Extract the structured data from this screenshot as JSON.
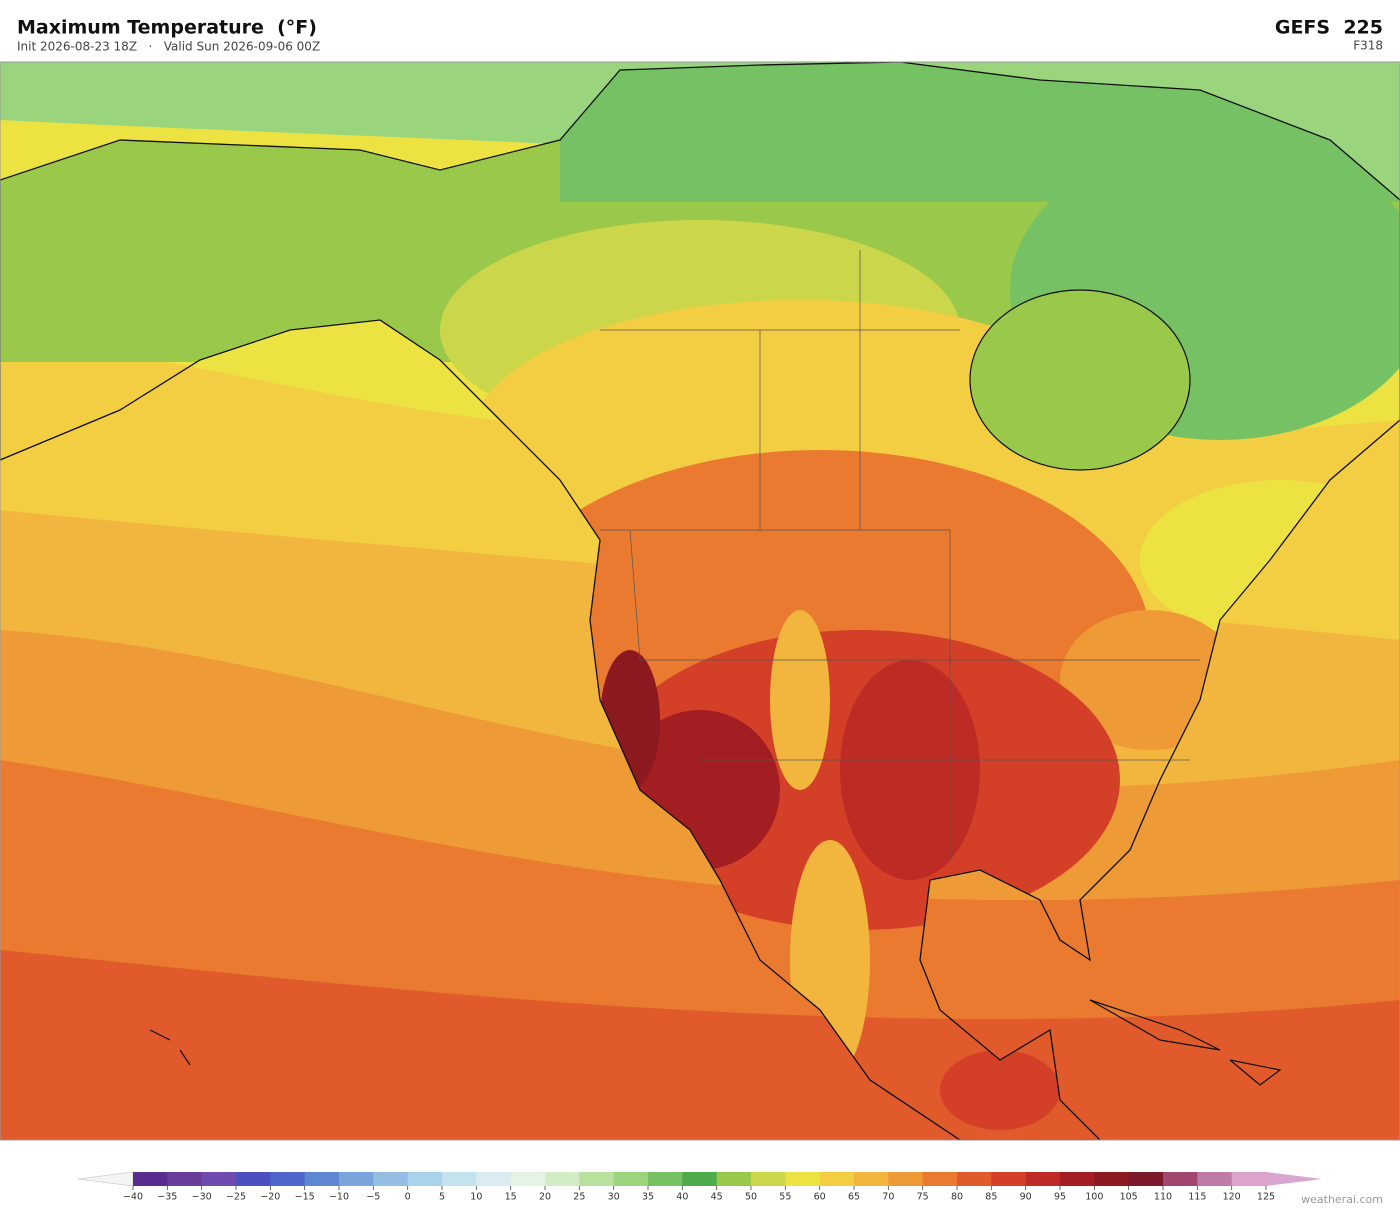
{
  "header": {
    "title": "Maximum Temperature  (°F)",
    "subtitle": "Init 2026-08-23 18Z   ·   Valid Sun 2026-09-06 00Z",
    "model": "GEFS  225",
    "forecast_hour": "F318"
  },
  "colorbar": {
    "ticks": [
      {
        "value": -40,
        "label": "−40"
      },
      {
        "value": -35,
        "label": "−35"
      },
      {
        "value": -30,
        "label": "−30"
      },
      {
        "value": -25,
        "label": "−25"
      },
      {
        "value": -20,
        "label": "−20"
      },
      {
        "value": -15,
        "label": "−15"
      },
      {
        "value": -10,
        "label": "−10"
      },
      {
        "value": -5,
        "label": "−5"
      },
      0,
      5,
      10,
      15,
      20,
      25,
      30,
      35,
      40,
      45,
      50,
      55,
      60,
      65,
      70,
      75,
      80,
      85,
      90,
      95,
      100,
      105,
      110,
      115,
      120,
      125
    ],
    "colors": [
      "#5b2c8f",
      "#6a3d9a",
      "#6f4bb0",
      "#4b4fc0",
      "#4f65cc",
      "#5f86d1",
      "#7aa4dc",
      "#93bde2",
      "#a9d2eb",
      "#c3e3ef",
      "#d8ecf1",
      "#e5f3e6",
      "#d4ecc6",
      "#b8e19d",
      "#9ad47d",
      "#75c163",
      "#4dab4b",
      "#99c84a",
      "#ccd64a",
      "#ece343",
      "#f3cd42",
      "#f2b53d",
      "#ee9a36",
      "#e97a30",
      "#e05a2b",
      "#d33f27",
      "#be2b25",
      "#a31e22",
      "#8c1820",
      "#7a1a2a",
      "#a0466f",
      "#c07aa8",
      "#dca4cc"
    ],
    "under_color": "#f4f4f4",
    "over_color": "#d9a6d1"
  },
  "credit": "weatherai.com"
}
